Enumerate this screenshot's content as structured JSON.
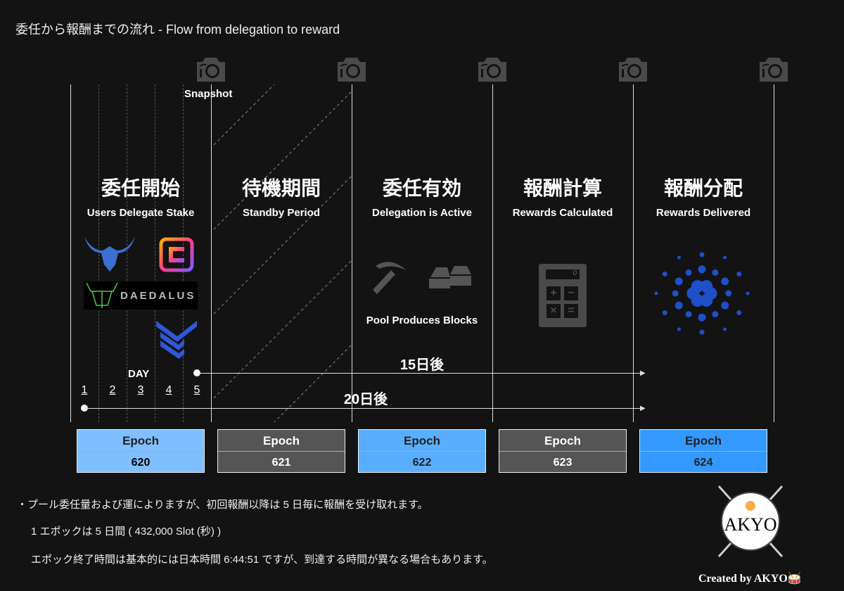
{
  "title": "委任から報酬までの流れ - Flow from delegation to reward",
  "snapshot_label": "Snapshot",
  "stages": [
    {
      "jp": "委任開始",
      "en": "Users Delegate Stake"
    },
    {
      "jp": "待機期間",
      "en": "Standby Period"
    },
    {
      "jp": "委任有効",
      "en": "Delegation is Active"
    },
    {
      "jp": "報酬計算",
      "en": "Rewards Calculated"
    },
    {
      "jp": "報酬分配",
      "en": "Rewards Delivered"
    }
  ],
  "wallet_logo_text": "DAEDALUS",
  "pool_label": "Pool Produces Blocks",
  "calculator_display": "0",
  "day_label": "DAY",
  "days": [
    "1",
    "2",
    "3",
    "4",
    "5"
  ],
  "span_15": "15日後",
  "span_20": "20日後",
  "epochs": [
    {
      "label": "Epoch",
      "number": "620",
      "color": "#80bfff"
    },
    {
      "label": "Epoch",
      "number": "621",
      "color": "#555555"
    },
    {
      "label": "Epoch",
      "number": "622",
      "color": "#5aaeff"
    },
    {
      "label": "Epoch",
      "number": "623",
      "color": "#555555"
    },
    {
      "label": "Epoch",
      "number": "624",
      "color": "#3399ff"
    }
  ],
  "notes": [
    "・プール委任量および運によりますが、初回報酬以降は 5 日毎に報酬を受け取れます。",
    "1 エポックは 5 日間 ( 432,000 Slot (秒) )",
    "エポック終了時間は基本的には日本時間 6:44:51 ですが、到達する時間が異なる場合もあります。"
  ],
  "logo_text": "AKYO",
  "credit": "Created by AKYO🥁"
}
